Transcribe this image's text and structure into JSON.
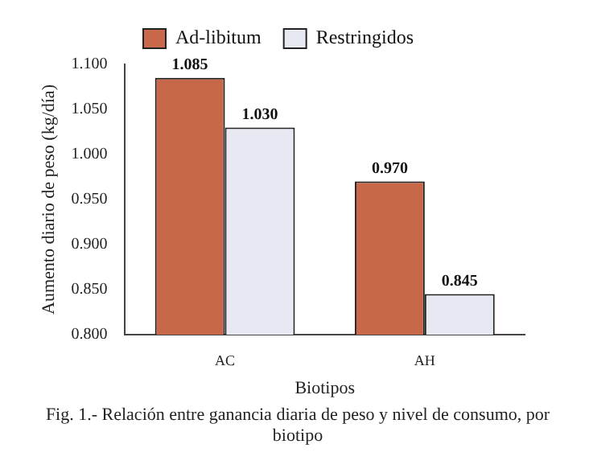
{
  "chart_data": {
    "type": "bar",
    "xlabel": "Biotipos",
    "ylabel": "Aumento diario de peso (kg/día)",
    "categories": [
      "AC",
      "AH"
    ],
    "series": [
      {
        "name": "Ad-libitum",
        "color": "#c8684a",
        "values": [
          1.085,
          0.97
        ],
        "value_labels": [
          "1.085",
          "0.970"
        ]
      },
      {
        "name": "Restringidos",
        "color": "#e6e8f2",
        "values": [
          1.03,
          0.845
        ],
        "value_labels": [
          "1.030",
          "0.845"
        ]
      }
    ],
    "ylim": [
      0.8,
      1.1
    ],
    "yticks": [
      {
        "value": 0.8,
        "label": "0.800"
      },
      {
        "value": 0.85,
        "label": "0.850"
      },
      {
        "value": 0.9,
        "label": "0.900"
      },
      {
        "value": 0.95,
        "label": "0.950"
      },
      {
        "value": 1.0,
        "label": "1.000"
      },
      {
        "value": 1.05,
        "label": "1.050"
      },
      {
        "value": 1.1,
        "label": "1.100"
      }
    ],
    "legend": "top",
    "annotations": [
      "Fig. 1.- Relación entre ganancia diaria de peso y nivel de consumo, por biotipo"
    ]
  }
}
